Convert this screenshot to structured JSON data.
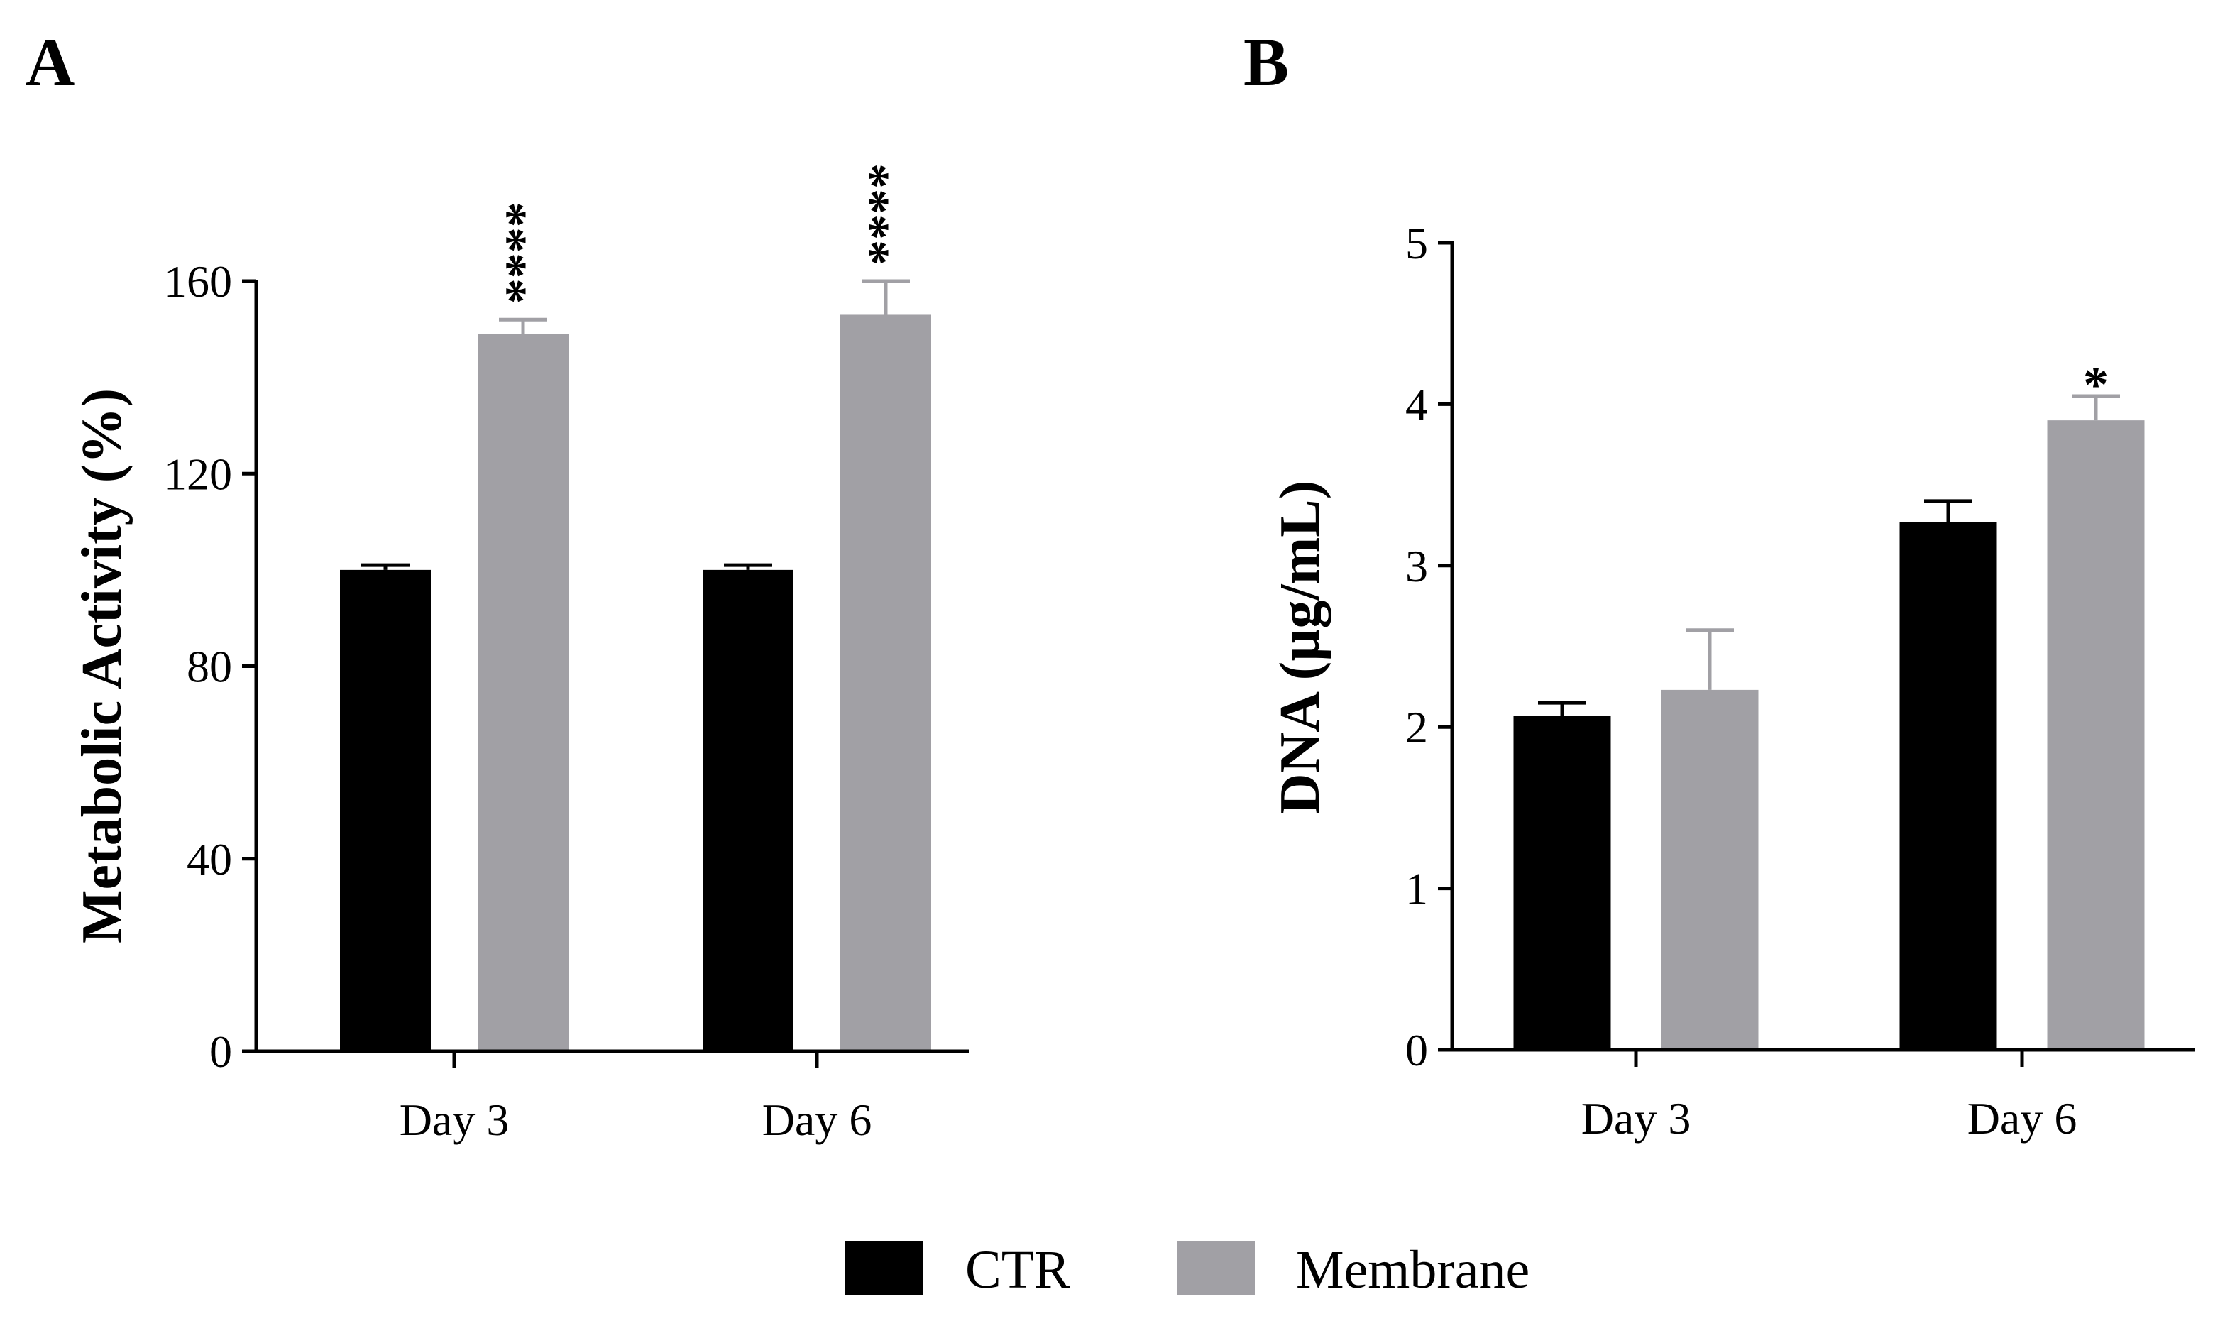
{
  "chart_data": [
    {
      "panel_label": "A",
      "type": "bar",
      "categories": [
        "Day 3",
        "Day 6"
      ],
      "ylabel": "Metabolic Activity (%)",
      "xlabel": "",
      "ylim": [
        0,
        160
      ],
      "yticks": [
        "0",
        "40",
        "80",
        "120",
        "160"
      ],
      "series": [
        {
          "name": "CTR",
          "values": [
            100,
            100
          ],
          "errors": [
            1,
            1
          ]
        },
        {
          "name": "Membrane",
          "values": [
            149,
            153
          ],
          "errors": [
            3,
            7
          ]
        }
      ],
      "annotations": [
        {
          "category": 0,
          "series": 1,
          "text": "****"
        },
        {
          "category": 1,
          "series": 1,
          "text": "****"
        }
      ]
    },
    {
      "panel_label": "B",
      "type": "bar",
      "categories": [
        "Day 3",
        "Day 6"
      ],
      "ylabel": "DNA (µg/mL)",
      "xlabel": "",
      "ylim": [
        0,
        5
      ],
      "yticks": [
        "0",
        "1",
        "2",
        "3",
        "4",
        "5"
      ],
      "series": [
        {
          "name": "CTR",
          "values": [
            2.07,
            3.27
          ],
          "errors": [
            0.08,
            0.13
          ]
        },
        {
          "name": "Membrane",
          "values": [
            2.23,
            3.9
          ],
          "errors": [
            0.37,
            0.15
          ]
        }
      ],
      "annotations": [
        {
          "category": 1,
          "series": 1,
          "text": "*"
        }
      ]
    }
  ],
  "legend": {
    "items": [
      {
        "label": "CTR",
        "color": "#000000"
      },
      {
        "label": "Membrane",
        "color": "#a1a0a5"
      }
    ]
  },
  "colors": {
    "ctr": "#000000",
    "membrane": "#a1a0a5",
    "axis": "#000000"
  }
}
